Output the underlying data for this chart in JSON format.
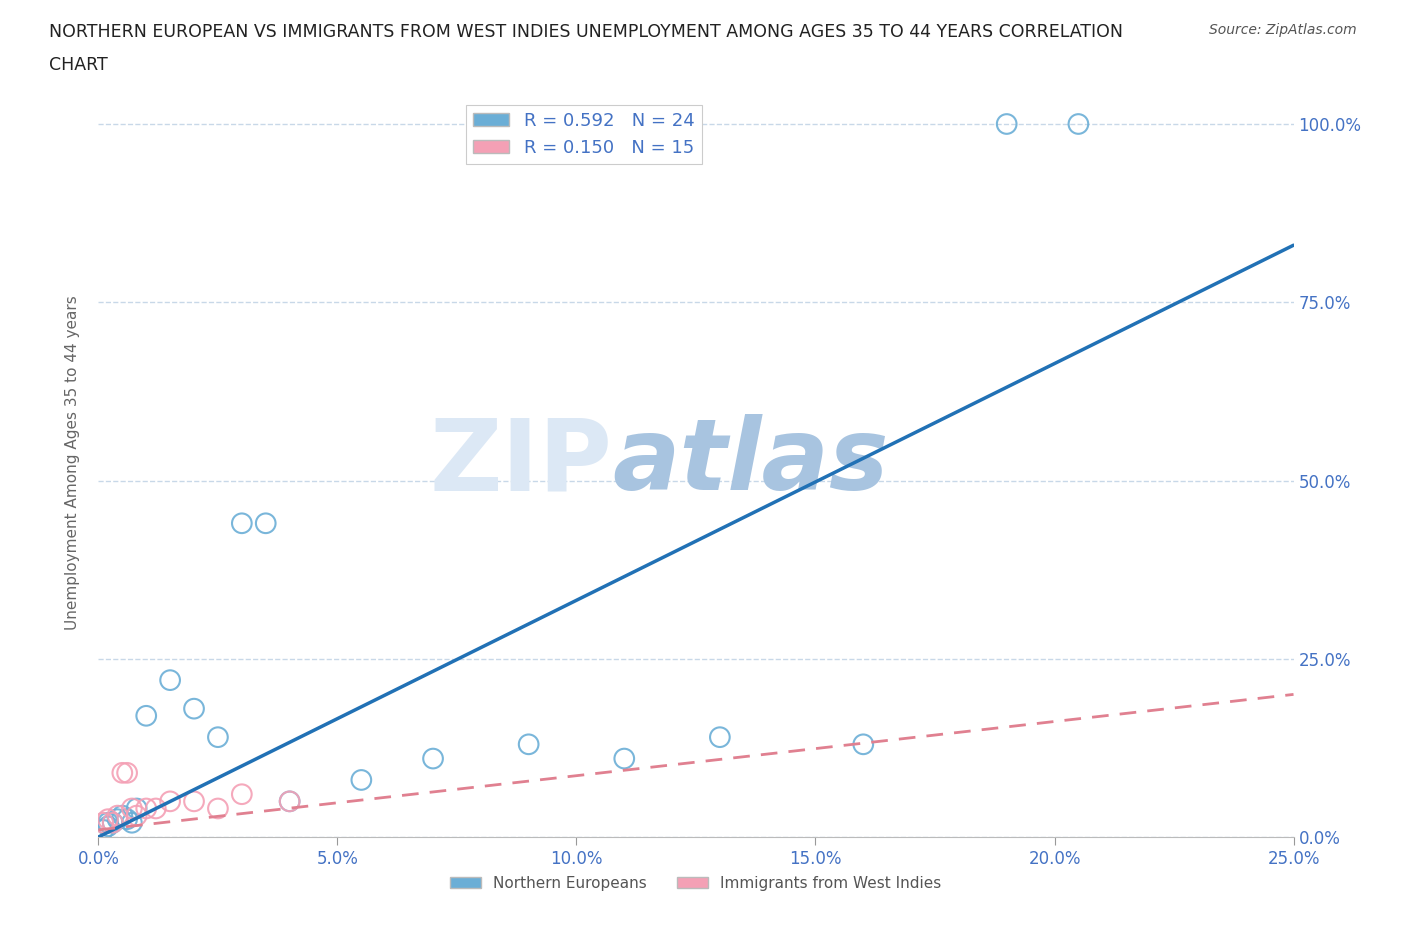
{
  "title_line1": "NORTHERN EUROPEAN VS IMMIGRANTS FROM WEST INDIES UNEMPLOYMENT AMONG AGES 35 TO 44 YEARS CORRELATION",
  "title_line2": "CHART",
  "source": "Source: ZipAtlas.com",
  "ylabel": "Unemployment Among Ages 35 to 44 years",
  "xlim": [
    0.0,
    0.25
  ],
  "ylim": [
    0.0,
    1.05
  ],
  "blue_scatter_x": [
    0.001,
    0.002,
    0.002,
    0.003,
    0.004,
    0.005,
    0.006,
    0.007,
    0.008,
    0.01,
    0.015,
    0.02,
    0.025,
    0.03,
    0.035,
    0.04,
    0.055,
    0.07,
    0.09,
    0.11,
    0.13,
    0.16,
    0.19,
    0.205
  ],
  "blue_scatter_y": [
    0.01,
    0.015,
    0.02,
    0.02,
    0.025,
    0.03,
    0.025,
    0.02,
    0.04,
    0.17,
    0.22,
    0.18,
    0.14,
    0.44,
    0.44,
    0.05,
    0.08,
    0.11,
    0.13,
    0.11,
    0.14,
    0.13,
    1.0,
    1.0
  ],
  "pink_scatter_x": [
    0.001,
    0.002,
    0.003,
    0.004,
    0.005,
    0.006,
    0.007,
    0.008,
    0.01,
    0.012,
    0.015,
    0.02,
    0.025,
    0.03,
    0.04
  ],
  "pink_scatter_y": [
    0.02,
    0.025,
    0.02,
    0.03,
    0.09,
    0.09,
    0.04,
    0.03,
    0.04,
    0.04,
    0.05,
    0.05,
    0.04,
    0.06,
    0.05
  ],
  "blue_line_x": [
    0.0,
    0.25
  ],
  "blue_line_y": [
    0.0,
    0.83
  ],
  "pink_line_x": [
    0.0,
    0.25
  ],
  "pink_line_y": [
    0.01,
    0.2
  ],
  "R_blue": 0.592,
  "N_blue": 24,
  "R_pink": 0.15,
  "N_pink": 15,
  "blue_color": "#6baed6",
  "blue_line_color": "#2171b5",
  "pink_color": "#f4a0b5",
  "pink_line_color": "#e08090",
  "title_color": "#333333",
  "axis_color": "#4472c4",
  "grid_color": "#c8d8e8",
  "watermark_zip_color": "#c8d8f0",
  "watermark_atlas_color": "#a0b8d8",
  "background_color": "#ffffff",
  "legend_label_color": "#4472c4"
}
